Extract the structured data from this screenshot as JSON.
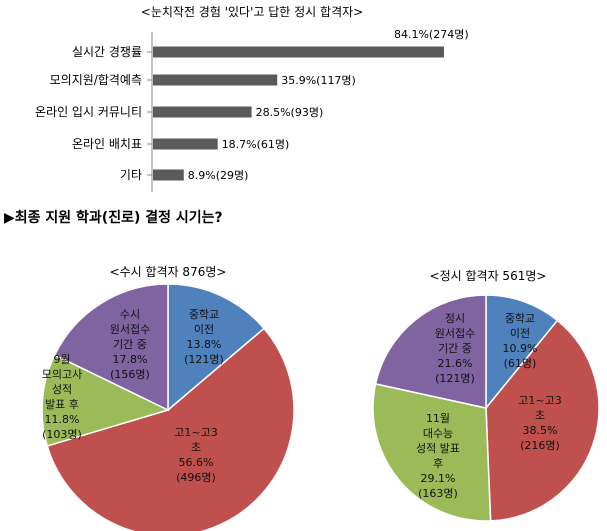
{
  "chart_data": [
    {
      "type": "bar",
      "orientation": "horizontal",
      "title": "<눈치작전 경험 '있다'고 답한 정시 합격자>",
      "categories": [
        "실시간 경쟁률",
        "모의지원/합격예측",
        "온라인 입시 커뮤니티",
        "온라인 배치표",
        "기타"
      ],
      "values": [
        84.1,
        35.9,
        28.5,
        18.7,
        8.9
      ],
      "labels": [
        "84.1%(274명)",
        "35.9%(117명)",
        "28.5%(93명)",
        "18.7%(61명)",
        "8.9%(29명)"
      ],
      "xlim": [
        0,
        100
      ],
      "colors": {
        "bar": "#5a5a5a",
        "axis": "#888888"
      }
    },
    {
      "type": "pie",
      "title": "<수시 합격자 876명>",
      "slices": [
        {
          "lines": [
            "중학교",
            "이전",
            "13.8%",
            "(121명)"
          ],
          "value": 13.8,
          "color": "#4f81bd"
        },
        {
          "lines": [
            "고1~고3",
            "초",
            "56.6%",
            "(496명)"
          ],
          "value": 56.6,
          "color": "#c0504d"
        },
        {
          "lines": [
            "9월",
            "모의고사",
            "성적",
            "발표 후",
            "11.8%",
            "(103명)"
          ],
          "value": 11.8,
          "color": "#9bbb59"
        },
        {
          "lines": [
            "수시",
            "원서접수",
            "기간 중",
            "17.8%",
            "(156명)"
          ],
          "value": 17.8,
          "color": "#8064a2"
        }
      ]
    },
    {
      "type": "pie",
      "title": "<정시 합격자 561명>",
      "slices": [
        {
          "lines": [
            "중학교",
            "이전",
            "10.9%",
            "(61명)"
          ],
          "value": 10.9,
          "color": "#4f81bd"
        },
        {
          "lines": [
            "고1~고3",
            "초",
            "38.5%",
            "(216명)"
          ],
          "value": 38.5,
          "color": "#c0504d"
        },
        {
          "lines": [
            "11월",
            "대수능",
            "성적 발표",
            "후",
            "29.1%",
            "(163명)"
          ],
          "value": 29.1,
          "color": "#9bbb59"
        },
        {
          "lines": [
            "정시",
            "원서접수",
            "기간 중",
            "21.6%",
            "(121명)"
          ],
          "value": 21.6,
          "color": "#8064a2"
        }
      ]
    }
  ],
  "section_heading": "▶최종 지원 학과(진로) 결정 시기는?"
}
